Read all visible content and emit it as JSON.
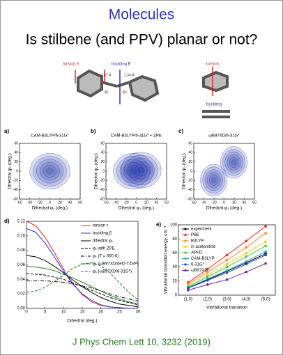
{
  "header": {
    "title": "Molecules",
    "subtitle": "Is stilbene (and PPV) planar or not?"
  },
  "figure": {
    "torsion_a": "torsion A",
    "buckling_b": "buckling B",
    "bond1": "1.47 Å",
    "bond2": "1.34 Å",
    "phi1": "φ₁",
    "phi2": "φ₂",
    "torsion": "torsion",
    "buckling": "buckling"
  },
  "chart_data": [
    {
      "type": "contour",
      "panel": "a)",
      "title": "CAM-B3LYP/6-31G*",
      "xlabel": "Dihedral φ₁ (deg.)",
      "ylabel": "Dihedral φ₂ (deg.)",
      "xlim": [
        -60,
        60
      ],
      "ylim": [
        -60,
        60
      ],
      "xticks": [
        -60,
        -40,
        -20,
        0,
        20,
        40,
        60
      ],
      "yticks": [
        -60,
        -40,
        -20,
        0,
        20,
        40,
        60
      ],
      "color": "#2233aa"
    },
    {
      "type": "contour",
      "panel": "b)",
      "title": "CAM-B3LYP/6-31G* + ZPE",
      "xlabel": "Dihedral φ₁ (deg.)",
      "ylabel": "Dihedral φ₂ (deg.)",
      "xlim": [
        -60,
        60
      ],
      "ylim": [
        -60,
        60
      ],
      "xticks": [
        -60,
        -40,
        -20,
        0,
        20,
        40,
        60
      ],
      "yticks": [
        -60,
        -40,
        -20,
        0,
        20,
        40,
        60
      ],
      "color": "#2233aa"
    },
    {
      "type": "contour",
      "panel": "c)",
      "title": "ωB97XD/6-31G*",
      "xlabel": "Dihedral φ₁ (deg.)",
      "ylabel": "Dihedral φ₂ (deg.)",
      "xlim": [
        -60,
        60
      ],
      "ylim": [
        -60,
        60
      ],
      "xticks": [
        -60,
        -40,
        -20,
        0,
        20,
        40,
        60
      ],
      "yticks": [
        -60,
        -40,
        -20,
        0,
        20,
        40,
        60
      ],
      "color": "#2233aa"
    },
    {
      "type": "line",
      "panel": "d)",
      "xlabel": "Dihedral (deg.)",
      "x": [
        0,
        2.5,
        5,
        7.5,
        10,
        12.5,
        15,
        17.5,
        20,
        22.5,
        25,
        27.5,
        30
      ],
      "xlim": [
        0,
        30
      ],
      "xticks": [
        0,
        5,
        10,
        15,
        20,
        25,
        30
      ],
      "ylim": [
        0,
        0.12
      ],
      "yticks": [
        {
          "value": 0,
          "label": "0.00"
        },
        {
          "value": 0.02,
          "label": "0.02"
        },
        {
          "value": 0.04,
          "label": "0.04"
        },
        {
          "value": 0.06,
          "label": "0.06"
        },
        {
          "value": 0.08,
          "label": "0.08"
        },
        {
          "value": 0.1,
          "label": "0.10"
        },
        {
          "value": 0.12,
          "label": "0.12"
        }
      ],
      "series": [
        {
          "name": "torsion τ",
          "color": "#e02020",
          "style": "solid",
          "values": [
            0.12,
            0.114,
            0.098,
            0.077,
            0.054,
            0.034,
            0.019,
            0.009,
            0.004,
            0.002,
            0.001,
            0,
            0
          ]
        },
        {
          "name": "buckling β",
          "color": "#2030e0",
          "style": "solid",
          "values": [
            0.11,
            0.105,
            0.09,
            0.071,
            0.051,
            0.033,
            0.02,
            0.011,
            0.005,
            0.002,
            0.001,
            0,
            0
          ]
        },
        {
          "name": "dihedral φ₁",
          "color": "#000000",
          "style": "solid",
          "values": [
            0.073,
            0.071,
            0.066,
            0.058,
            0.049,
            0.039,
            0.03,
            0.022,
            0.015,
            0.01,
            0.006,
            0.004,
            0.002
          ]
        },
        {
          "name": "φ₁ with ZPE",
          "color": "#000000",
          "style": "dashed",
          "values": [
            0.048,
            0.047,
            0.046,
            0.043,
            0.04,
            0.035,
            0.03,
            0.025,
            0.02,
            0.015,
            0.011,
            0.008,
            0.005
          ]
        },
        {
          "name": "φ₁ (T = 300 K)",
          "color": "#000000",
          "style": "dashdot",
          "values": [
            0.038,
            0.038,
            0.038,
            0.037,
            0.036,
            0.034,
            0.031,
            0.028,
            0.024,
            0.02,
            0.016,
            0.013,
            0.01
          ]
        },
        {
          "name": "φ₁ (ωB97XD/def2-TZVP)",
          "color": "#208020",
          "style": "solid",
          "values": [
            0.058,
            0.057,
            0.055,
            0.052,
            0.047,
            0.042,
            0.036,
            0.03,
            0.024,
            0.018,
            0.013,
            0.009,
            0.006
          ]
        },
        {
          "name": "φ₁ (ωB97XD/6-31G*)",
          "color": "#208020",
          "style": "dashed",
          "values": [
            0.022,
            0.024,
            0.029,
            0.037,
            0.046,
            0.055,
            0.061,
            0.063,
            0.059,
            0.049,
            0.035,
            0.022,
            0.012
          ]
        }
      ]
    },
    {
      "type": "category-line",
      "panel": "e)",
      "xlabel": "Vibrational transition",
      "ylabel": "Vibrational transition energy, cm⁻¹",
      "categories": [
        "(1,0)",
        "(2,0)",
        "(3,0)",
        "(4,0)",
        "(5,0)"
      ],
      "ylim": [
        0,
        100
      ],
      "yticks": [
        0,
        20,
        40,
        60,
        80,
        100
      ],
      "series": [
        {
          "name": "experiment",
          "color": "#000000",
          "values": [
            10,
            22,
            34,
            46,
            59
          ]
        },
        {
          "name": "PBE",
          "color": "#ff2020",
          "values": [
            18,
            37,
            57,
            77,
            98
          ]
        },
        {
          "name": "B3LYP",
          "color": "#ff8c1a",
          "values": [
            16,
            33,
            50,
            68,
            88
          ]
        },
        {
          "name": "in acetonitrile",
          "color": "#e8d020",
          "values": [
            14,
            29,
            44,
            60,
            76
          ]
        },
        {
          "name": "APFD",
          "color": "#40c040",
          "values": [
            12,
            26,
            40,
            55,
            70
          ]
        },
        {
          "name": "CAM-B3LYP",
          "color": "#20b0b0",
          "values": [
            11,
            23,
            35,
            48,
            62
          ]
        },
        {
          "name": "6-31G*",
          "color": "#2040e0",
          "values": [
            10,
            21,
            32,
            44,
            57
          ]
        },
        {
          "name": "ωB97XD",
          "color": "#7020a0",
          "values": [
            7,
            15,
            22,
            33,
            45
          ]
        }
      ]
    }
  ],
  "footer": {
    "citation": "J Phys Chem Lett 10, 3232 (2019)"
  }
}
